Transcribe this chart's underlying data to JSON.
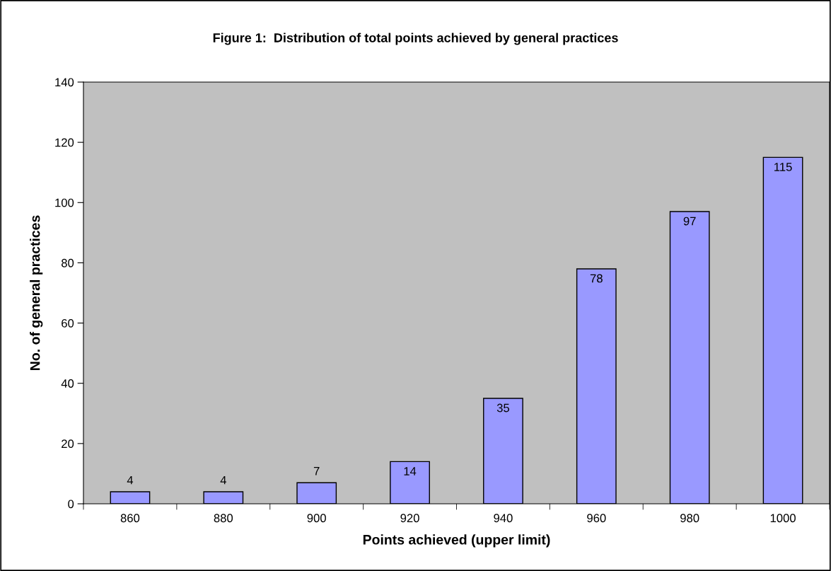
{
  "chart_data": {
    "type": "bar",
    "title": "Figure 1:  Distribution of total points achieved by general practices",
    "xlabel": "Points achieved (upper limit)",
    "ylabel": "No. of general practices",
    "categories": [
      "860",
      "880",
      "900",
      "920",
      "940",
      "960",
      "980",
      "1000"
    ],
    "values": [
      4,
      4,
      7,
      14,
      35,
      78,
      97,
      115
    ],
    "color": "#9999ff",
    "ylim": [
      0,
      140
    ],
    "yticks": [
      0,
      20,
      40,
      60,
      80,
      100,
      120,
      140
    ],
    "grid": false,
    "data_labels": true,
    "legend": false
  }
}
